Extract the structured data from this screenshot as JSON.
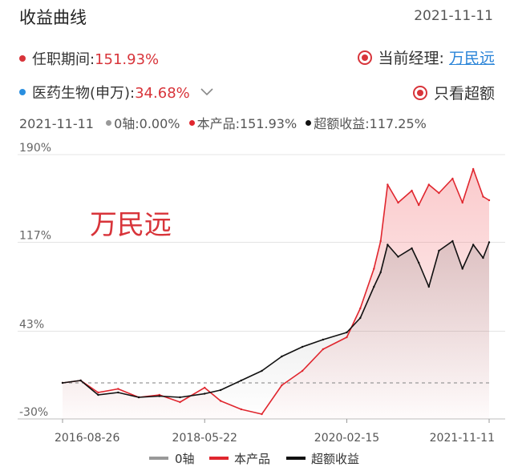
{
  "header": {
    "title": "收益曲线",
    "date": "2021-11-11"
  },
  "tenure": {
    "label": "任职期间:",
    "value": "151.93%",
    "dot_color": "#d8343a"
  },
  "manager": {
    "label": "当前经理:",
    "name": "万民远"
  },
  "benchmark": {
    "label": "医药生物(申万):",
    "value": "34.68%",
    "dot_color": "#2a8fe0"
  },
  "excess_toggle": {
    "label": "只看超额"
  },
  "stats": {
    "date": "2021-11-11",
    "axis0": "0轴:0.00%",
    "product": "本产品:151.93%",
    "excess": "超额收益:117.25%"
  },
  "chart_data": {
    "type": "line",
    "watermark": "万民远",
    "y_ticks": [
      "190%",
      "117%",
      "43%",
      "-30%"
    ],
    "y_tick_values": [
      190,
      117,
      43,
      -30
    ],
    "ylim": [
      -30,
      190
    ],
    "x_ticks": [
      "2016-08-26",
      "2018-05-22",
      "2020-02-15",
      "2021-11-11"
    ],
    "x": [
      "2016-08-26",
      "2016-11-15",
      "2017-02-01",
      "2017-05-01",
      "2017-08-01",
      "2017-11-01",
      "2018-02-01",
      "2018-05-22",
      "2018-08-01",
      "2018-11-01",
      "2019-02-01",
      "2019-05-01",
      "2019-08-01",
      "2019-11-01",
      "2020-02-15",
      "2020-04-15",
      "2020-06-15",
      "2020-07-15",
      "2020-08-15",
      "2020-10-01",
      "2020-12-01",
      "2021-01-01",
      "2021-02-15",
      "2021-04-01",
      "2021-06-01",
      "2021-07-15",
      "2021-09-01",
      "2021-10-15",
      "2021-11-11"
    ],
    "series": [
      {
        "name": "0轴",
        "color": "#999999",
        "values": [
          0,
          0,
          0,
          0,
          0,
          0,
          0,
          0,
          0,
          0,
          0,
          0,
          0,
          0,
          0,
          0,
          0,
          0,
          0,
          0,
          0,
          0,
          0,
          0,
          0,
          0,
          0,
          0,
          0
        ]
      },
      {
        "name": "本产品",
        "color": "#e0262e",
        "values": [
          0,
          2,
          -8,
          -5,
          -12,
          -10,
          -16,
          -4,
          -15,
          -22,
          -26,
          -2,
          10,
          28,
          38,
          62,
          95,
          118,
          165,
          150,
          160,
          148,
          165,
          158,
          170,
          150,
          178,
          155,
          152
        ]
      },
      {
        "name": "超额收益",
        "color": "#111111",
        "values": [
          0,
          2,
          -10,
          -8,
          -12,
          -11,
          -12,
          -9,
          -6,
          2,
          10,
          22,
          30,
          36,
          42,
          54,
          80,
          92,
          115,
          105,
          112,
          100,
          80,
          110,
          118,
          95,
          115,
          104,
          117
        ]
      }
    ]
  },
  "legend": {
    "axis0": "0轴",
    "product": "本产品",
    "excess": "超额收益"
  }
}
